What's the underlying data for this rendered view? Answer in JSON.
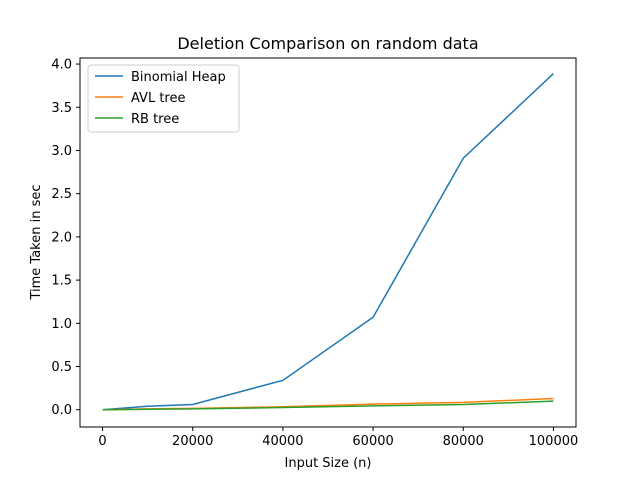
{
  "chart_data": {
    "type": "line",
    "title": "Deletion Comparison on random data",
    "xlabel": "Input Size (n)",
    "ylabel": "Time Taken in sec",
    "xlim": [
      -5000,
      105000
    ],
    "ylim": [
      -0.2,
      4.07
    ],
    "xticks": [
      0,
      20000,
      40000,
      60000,
      80000,
      100000
    ],
    "yticks": [
      0.0,
      0.5,
      1.0,
      1.5,
      2.0,
      2.5,
      3.0,
      3.5,
      4.0
    ],
    "xtick_labels": [
      "0",
      "20000",
      "40000",
      "60000",
      "80000",
      "100000"
    ],
    "ytick_labels": [
      "0.0",
      "0.5",
      "1.0",
      "1.5",
      "2.0",
      "2.5",
      "3.0",
      "3.5",
      "4.0"
    ],
    "legend_position": "top-left",
    "grid": false,
    "x": [
      0,
      10000,
      20000,
      40000,
      60000,
      80000,
      100000
    ],
    "series": [
      {
        "name": "Binomial Heap",
        "color": "#1f77b4",
        "values": [
          0.0,
          0.04,
          0.06,
          0.34,
          1.07,
          2.91,
          3.89
        ]
      },
      {
        "name": "AVL tree",
        "color": "#ff7f0e",
        "values": [
          0.0,
          0.01,
          0.015,
          0.035,
          0.065,
          0.085,
          0.13
        ]
      },
      {
        "name": "RB tree",
        "color": "#2ca02c",
        "values": [
          0.0,
          0.005,
          0.01,
          0.025,
          0.045,
          0.06,
          0.1
        ]
      }
    ]
  }
}
